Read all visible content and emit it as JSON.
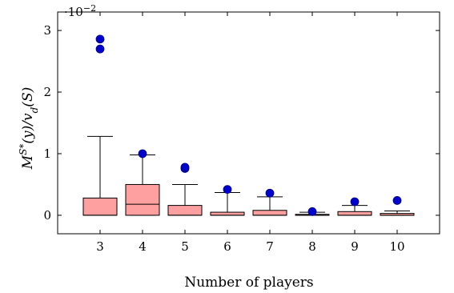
{
  "chart_data": {
    "type": "box",
    "xlabel": "Number of players",
    "ylabel_parts": {
      "base": "M",
      "sup": "S*",
      "rest": "(y)/v",
      "sub": "d",
      "tail": "(S)"
    },
    "scale_note": {
      "base": "·10",
      "exponent": "−2"
    },
    "ylim": [
      -0.3,
      3.3
    ],
    "y_ticks": [
      0,
      1,
      2,
      3
    ],
    "x_range": [
      2,
      11
    ],
    "categories": [
      "3",
      "4",
      "5",
      "6",
      "7",
      "8",
      "9",
      "10"
    ],
    "boxes": [
      {
        "x": 3,
        "whisker_low": 0,
        "q1": 0,
        "median": 0,
        "q3": 0.28,
        "whisker_high": 1.28,
        "outliers": [
          2.7,
          2.86
        ]
      },
      {
        "x": 4,
        "whisker_low": 0,
        "q1": 0,
        "median": 0.18,
        "q3": 0.5,
        "whisker_high": 0.98,
        "outliers": [
          1.0
        ]
      },
      {
        "x": 5,
        "whisker_low": 0,
        "q1": 0,
        "median": 0,
        "q3": 0.16,
        "whisker_high": 0.5,
        "outliers": [
          0.76,
          0.78
        ]
      },
      {
        "x": 6,
        "whisker_low": 0,
        "q1": 0,
        "median": 0,
        "q3": 0.05,
        "whisker_high": 0.37,
        "outliers": [
          0.42
        ]
      },
      {
        "x": 7,
        "whisker_low": 0,
        "q1": 0,
        "median": 0,
        "q3": 0.08,
        "whisker_high": 0.3,
        "outliers": [
          0.36
        ]
      },
      {
        "x": 8,
        "whisker_low": 0,
        "q1": 0,
        "median": 0,
        "q3": 0.015,
        "whisker_high": 0.05,
        "outliers": [
          0.06
        ]
      },
      {
        "x": 9,
        "whisker_low": 0,
        "q1": 0,
        "median": 0,
        "q3": 0.06,
        "whisker_high": 0.16,
        "outliers": [
          0.22
        ]
      },
      {
        "x": 10,
        "whisker_low": 0,
        "q1": 0,
        "median": 0,
        "q3": 0.03,
        "whisker_high": 0.07,
        "outliers": [
          0.24
        ]
      }
    ],
    "box_fill": "#ffa0a0",
    "outlier_fill": "#0000cc",
    "outlier_stroke": "#000080",
    "grid": false
  }
}
